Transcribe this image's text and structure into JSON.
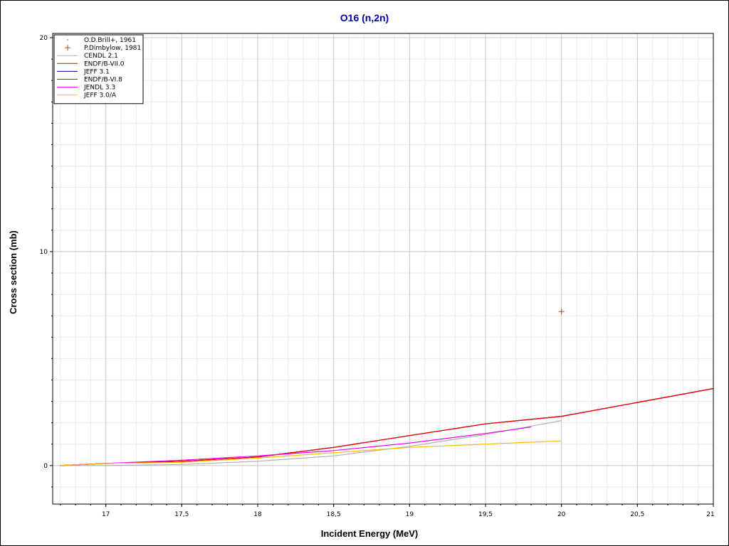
{
  "chart_data": {
    "type": "line",
    "title": "O16 (n,2n)",
    "xlabel": "Incident Energy (MeV)",
    "ylabel": "Cross section (mb)",
    "xlim": [
      16.65,
      21
    ],
    "ylim": [
      -1.8,
      20.2
    ],
    "x_ticks": [
      {
        "value": 17,
        "label": "17"
      },
      {
        "value": 17.5,
        "label": "17,5"
      },
      {
        "value": 18,
        "label": "18"
      },
      {
        "value": 18.5,
        "label": "18,5"
      },
      {
        "value": 19,
        "label": "19"
      },
      {
        "value": 19.5,
        "label": "19,5"
      },
      {
        "value": 20,
        "label": "20"
      },
      {
        "value": 20.5,
        "label": "20,5"
      },
      {
        "value": 21,
        "label": "21"
      }
    ],
    "y_ticks": [
      {
        "value": 0,
        "label": "0"
      },
      {
        "value": 10,
        "label": "10"
      },
      {
        "value": 20,
        "label": "20"
      }
    ],
    "grid": true,
    "legend_position": "top-left",
    "series": [
      {
        "name": "O.D.Brill+, 1961",
        "kind": "points",
        "marker": "dot",
        "color": "#999999",
        "x": [],
        "y": []
      },
      {
        "name": "P.Dimbylow, 1981",
        "kind": "points",
        "marker": "plus",
        "color": "#a0522d",
        "x": [
          20.0
        ],
        "y": [
          7.2
        ]
      },
      {
        "name": "CENDL 2.1",
        "kind": "line",
        "color": "#b0b0b0",
        "x": [
          16.7,
          17.0,
          17.5,
          18.0,
          18.5,
          19.0,
          19.5,
          20.0
        ],
        "y": [
          0.0,
          0.0,
          0.05,
          0.2,
          0.45,
          0.9,
          1.45,
          2.1
        ]
      },
      {
        "name": "ENDF/B-VII.0",
        "kind": "line",
        "color": "#dd0000",
        "x": [
          16.7,
          17.0,
          17.5,
          18.0,
          18.5,
          19.0,
          19.5,
          20.0,
          20.5,
          21.0
        ],
        "y": [
          0.0,
          0.1,
          0.2,
          0.4,
          0.85,
          1.4,
          1.95,
          2.3,
          2.95,
          3.6
        ]
      },
      {
        "name": "JEFF 3.1",
        "kind": "line",
        "color": "#000080",
        "x": [
          16.7,
          17.0,
          17.5,
          18.0,
          18.5,
          19.0,
          19.5,
          20.0,
          20.5,
          21.0
        ],
        "y": [
          0.0,
          0.1,
          0.2,
          0.4,
          0.85,
          1.4,
          1.95,
          2.3,
          2.95,
          3.6
        ]
      },
      {
        "name": "ENDF/B-VI.8",
        "kind": "line",
        "color": "#ff0000",
        "x": [
          16.7,
          17.0,
          17.5,
          18.0,
          18.5,
          19.0,
          19.5,
          20.0,
          20.5,
          21.0
        ],
        "y": [
          0.0,
          0.1,
          0.2,
          0.4,
          0.85,
          1.4,
          1.95,
          2.3,
          2.95,
          3.6
        ]
      },
      {
        "name": "JENDL 3.3",
        "kind": "line",
        "color": "#ee00ee",
        "x": [
          16.7,
          17.0,
          17.5,
          18.0,
          18.5,
          19.0,
          19.5,
          19.8
        ],
        "y": [
          0.0,
          0.1,
          0.25,
          0.45,
          0.7,
          1.05,
          1.5,
          1.8
        ]
      },
      {
        "name": "JEFF 3.0/A",
        "kind": "line",
        "color": "#ffbb00",
        "x": [
          16.7,
          17.0,
          17.5,
          18.0,
          18.5,
          19.0,
          19.5,
          20.0
        ],
        "y": [
          0.0,
          0.1,
          0.15,
          0.35,
          0.6,
          0.85,
          1.0,
          1.15
        ]
      }
    ]
  }
}
